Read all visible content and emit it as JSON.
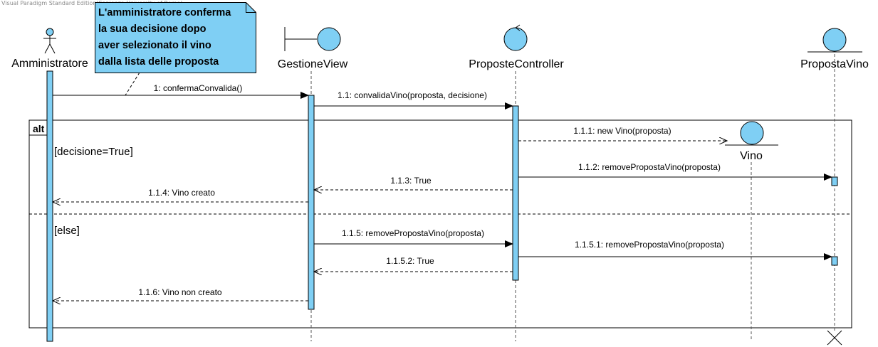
{
  "watermark": "Visual Paradigm Standard Edition(Sapienza University of Rome)",
  "note": {
    "lines": [
      "L'amministratore conferma",
      "la sua decisione dopo",
      "aver selezionato il vino",
      "dalla lista delle proposta"
    ]
  },
  "lifelines": {
    "actor": "Amministratore",
    "boundary": "GestioneView",
    "control": "ProposteController",
    "entity_proposta": "PropostaVino",
    "entity_vino": "Vino"
  },
  "fragment": {
    "operator": "alt",
    "guard1": "[decisione=True]",
    "guard2": "[else]"
  },
  "messages": {
    "m1": "1: confermaConvalida()",
    "m1_1": "1.1: convalidaVino(proposta, decisione)",
    "m1_1_1": "1.1.1: new Vino(proposta)",
    "m1_1_2": "1.1.2: removePropostaVino(proposta)",
    "m1_1_3": "1.1.3: True",
    "m1_1_4": "1.1.4: Vino creato",
    "m1_1_5": "1.1.5: removePropostaVino(proposta)",
    "m1_1_5_1": "1.1.5.1: removePropostaVino(proposta)",
    "m1_1_5_2": "1.1.5.2: True",
    "m1_1_6": "1.1.6: Vino non creato"
  },
  "colors": {
    "fill": "#7fcff4",
    "stroke": "#000000",
    "lifeline": "#555555"
  }
}
